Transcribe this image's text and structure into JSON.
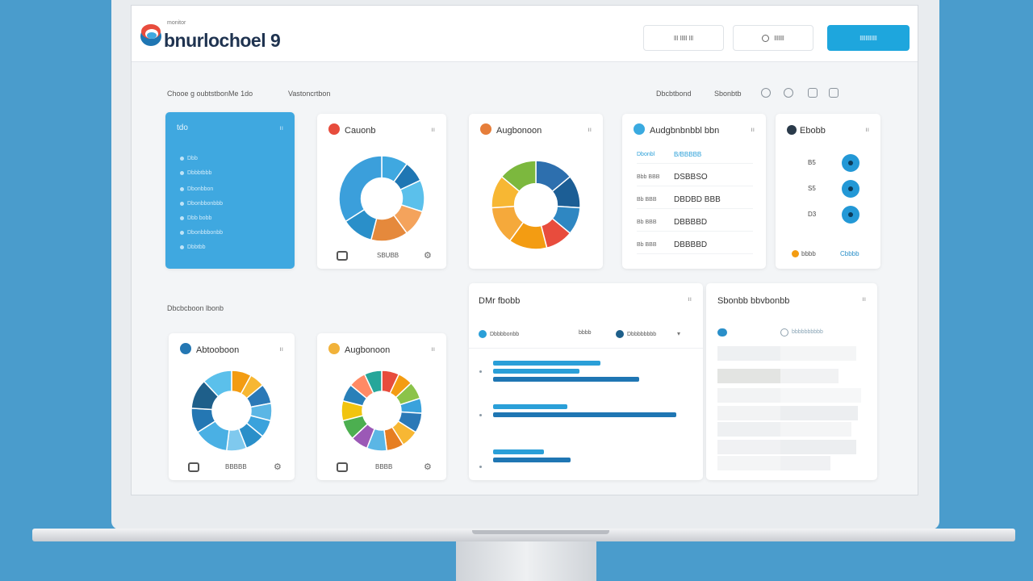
{
  "header": {
    "logo_small": "monitor",
    "logo_text": "bnurlochoel 9",
    "buttons": [
      {
        "label": "lll lllll lll"
      },
      {
        "label": "lllllll"
      },
      {
        "label": "llllllllllll"
      }
    ]
  },
  "toolbar": {
    "left_label": "Chooe g oubtstbonMe 1do",
    "mid_label": "Vastoncrtbon",
    "right_label_1": "Dbcbtbond",
    "right_label_2": "Sbonbtb"
  },
  "sections": {
    "bottom_label": "Dbcbcboon lbonb"
  },
  "cards": {
    "blue": {
      "title": "tdo",
      "more": "ıı",
      "items": [
        "Dbb",
        "Dbbbtbbb",
        "Dbonbbon",
        "Dbonbbonbbb",
        "Dbb bobb",
        "Dbonbbbonbb",
        "Dbbtbb"
      ]
    },
    "donut1": {
      "title": "Cauonb",
      "more": "ıı",
      "footer": "SBUBB",
      "color": "#e74c3c"
    },
    "donut2": {
      "title": "Augbonoon",
      "more": "ıı",
      "color": "#e67e3a"
    },
    "list": {
      "title": "Audgbnbnbbl bbn",
      "more": "ıı",
      "color": "#3aaae0",
      "rows": [
        {
          "k": "Dbonbl",
          "v": "B/BBBBB"
        },
        {
          "k": "Bbb BBB",
          "v": "DSBBSO"
        },
        {
          "k": "Bb BBB",
          "v": "DBDBD BBB"
        },
        {
          "k": "Bb BBB",
          "v": "DBBBBD"
        },
        {
          "k": "Bb BBB",
          "v": "DBBBBD"
        }
      ]
    },
    "numbers": {
      "title": "Ebobb",
      "more": "ıı",
      "rows": [
        "B5",
        "S5",
        "D3"
      ],
      "footer_left": "bbbb",
      "footer_right": "Cbbbb"
    },
    "donut3": {
      "title": "Abtooboon",
      "more": "ıı",
      "footer": "BBBBB",
      "color": "#2477b3"
    },
    "donut4": {
      "title": "Augbonoon",
      "more": "ıı",
      "footer": "BBBB",
      "color": "#f1b23a"
    },
    "bars": {
      "title": "DMr fbobb",
      "more": "ıı",
      "legend": [
        {
          "name": "Dbbbbonbb",
          "color": "#2a9fd8"
        },
        {
          "name": "bbbb",
          "color": ""
        },
        {
          "name": "Dbbbbbbbb",
          "color": "#1e5f8a"
        }
      ]
    },
    "table": {
      "title": "Sbonbb bbvbonbb",
      "more": "ıı",
      "header_label": "bbbbbbbbbb"
    }
  },
  "chart_data": [
    {
      "type": "pie",
      "title": "Cauonb",
      "values": [
        10,
        8,
        12,
        10,
        14,
        12,
        34
      ],
      "colors": [
        "#3fa8e0",
        "#1f76b3",
        "#5bc0eb",
        "#f4a35c",
        "#e5893c",
        "#2a8fc9",
        "#3b9fdb"
      ]
    },
    {
      "type": "pie",
      "title": "Augbonoon",
      "values": [
        14,
        12,
        10,
        10,
        14,
        14,
        12,
        14
      ],
      "colors": [
        "#2d6fae",
        "#1c5e95",
        "#2f87c2",
        "#e84c3d",
        "#f39c12",
        "#f5a93b",
        "#f7b733",
        "#7cb83e"
      ]
    },
    {
      "type": "pie",
      "title": "Abtooboon",
      "values": [
        8,
        6,
        8,
        7,
        7,
        8,
        8,
        14,
        10,
        12,
        12
      ],
      "colors": [
        "#f39c12",
        "#f7b733",
        "#2b79b7",
        "#5bb6e5",
        "#3aa2dc",
        "#2a8fc9",
        "#7fc9ee",
        "#4ab0e4",
        "#2477b3",
        "#1e5f8a",
        "#5bc0eb"
      ]
    },
    {
      "type": "pie",
      "title": "Augbonoon",
      "values": [
        7,
        6,
        7,
        6,
        8,
        7,
        7,
        8,
        7,
        8,
        8,
        7,
        7,
        7
      ],
      "colors": [
        "#e74c3c",
        "#f39c12",
        "#8bc34a",
        "#3aa2dc",
        "#2b79b7",
        "#f7b733",
        "#e67e22",
        "#5bb6e5",
        "#9b59b6",
        "#4caf50",
        "#f1c40f",
        "#2980b9",
        "#ff8a65",
        "#26a69a"
      ]
    },
    {
      "type": "bar",
      "title": "DMr fbobb",
      "orientation": "horizontal",
      "groups": [
        {
          "values": [
            72,
            58,
            98
          ]
        },
        {
          "values": [
            50,
            123
          ]
        },
        {
          "values": [
            34,
            52
          ]
        }
      ],
      "colors": [
        "#2a9fd8",
        "#1f76b3"
      ]
    }
  ]
}
